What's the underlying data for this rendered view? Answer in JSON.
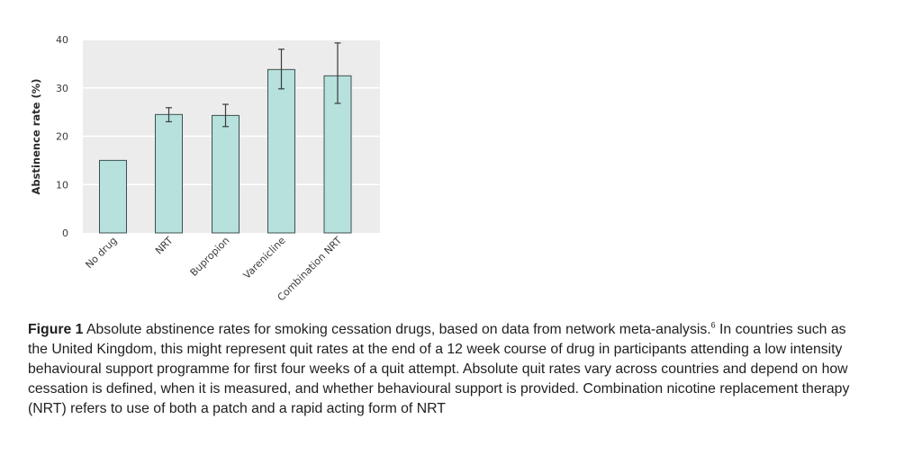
{
  "chart_data": {
    "type": "bar",
    "categories": [
      "No drug",
      "NRT",
      "Bupropion",
      "Varenicline",
      "Combination NRT"
    ],
    "values": [
      15,
      24.5,
      24.3,
      33.8,
      32.5
    ],
    "error_low": [
      null,
      23,
      22,
      29.8,
      26.8
    ],
    "error_high": [
      null,
      25.9,
      26.6,
      38,
      39.3
    ],
    "ylabel": "Abstinence rate (%)",
    "ylim": [
      0,
      40
    ],
    "yticks": [
      0,
      10,
      20,
      30,
      40
    ],
    "grid": true,
    "colors": {
      "bar_fill": "#b7e1dd",
      "bar_stroke": "#3d4f4e",
      "plot_bg": "#ececec",
      "grid": "#ffffff",
      "error": "#3a3a3a"
    }
  },
  "caption": {
    "label": "Figure 1",
    "text_before_ref": " Absolute abstinence rates for smoking cessation drugs, based on data from network meta-analysis.",
    "ref": "6",
    "text_after_ref": " In countries such as the United Kingdom, this might represent quit rates at the end of a 12 week course of drug in participants attending a low intensity behavioural support programme for first four weeks of a quit attempt. Absolute quit rates vary across countries and depend on how cessation is defined, when it is measured, and whether behavioural support is provided. Combination nicotine replacement therapy (NRT) refers to use of both a patch and a rapid acting form of NRT"
  }
}
